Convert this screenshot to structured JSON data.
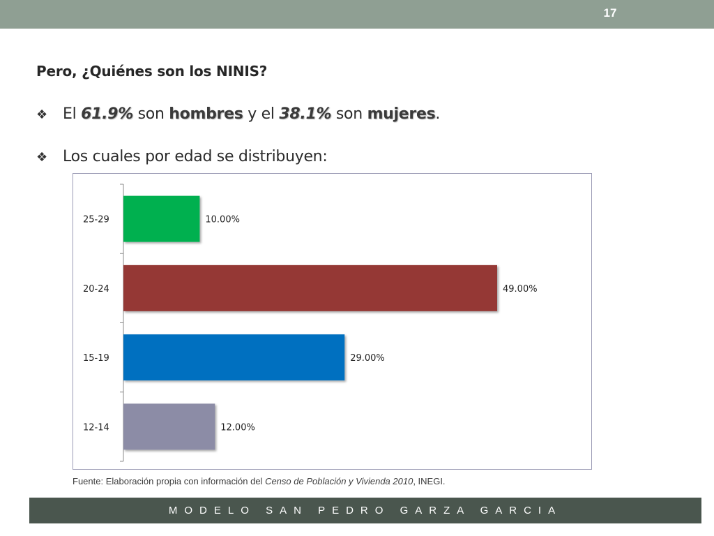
{
  "slide": {
    "number": "17"
  },
  "title": "Pero, ¿Quiénes son los NINIS?",
  "bullets": [
    {
      "marker": "❖",
      "parts": [
        "El ",
        "61.9%",
        " son ",
        "hombres",
        " y el ",
        "38.1%",
        " son ",
        "mujeres",
        "."
      ]
    },
    {
      "marker": "❖",
      "text": "Los cuales por edad se distribuyen:"
    }
  ],
  "source": {
    "prefix": "Fuente: Elaboración propia con información del ",
    "italic": "Censo de Población y Vivienda  2010",
    "suffix": ", INEGI."
  },
  "footer": {
    "text": "MODELO SAN PEDRO GARZA GARCIA"
  },
  "colors": {
    "topbar": "#8f9f93",
    "footer": "#4a564e",
    "bars": [
      "#00b050",
      "#953735",
      "#0070c0",
      "#8c8ca6"
    ]
  },
  "chart_data": {
    "type": "bar",
    "orientation": "horizontal",
    "categories": [
      "25-29",
      "20-24",
      "15-19",
      "12-14"
    ],
    "values": [
      10,
      49,
      29,
      12
    ],
    "value_labels": [
      "10.00%",
      "49.00%",
      "29.00%",
      "12.00%"
    ],
    "title": "",
    "xlabel": "",
    "ylabel": "",
    "xlim": [
      0,
      50
    ],
    "grid": false,
    "legend": "none"
  }
}
